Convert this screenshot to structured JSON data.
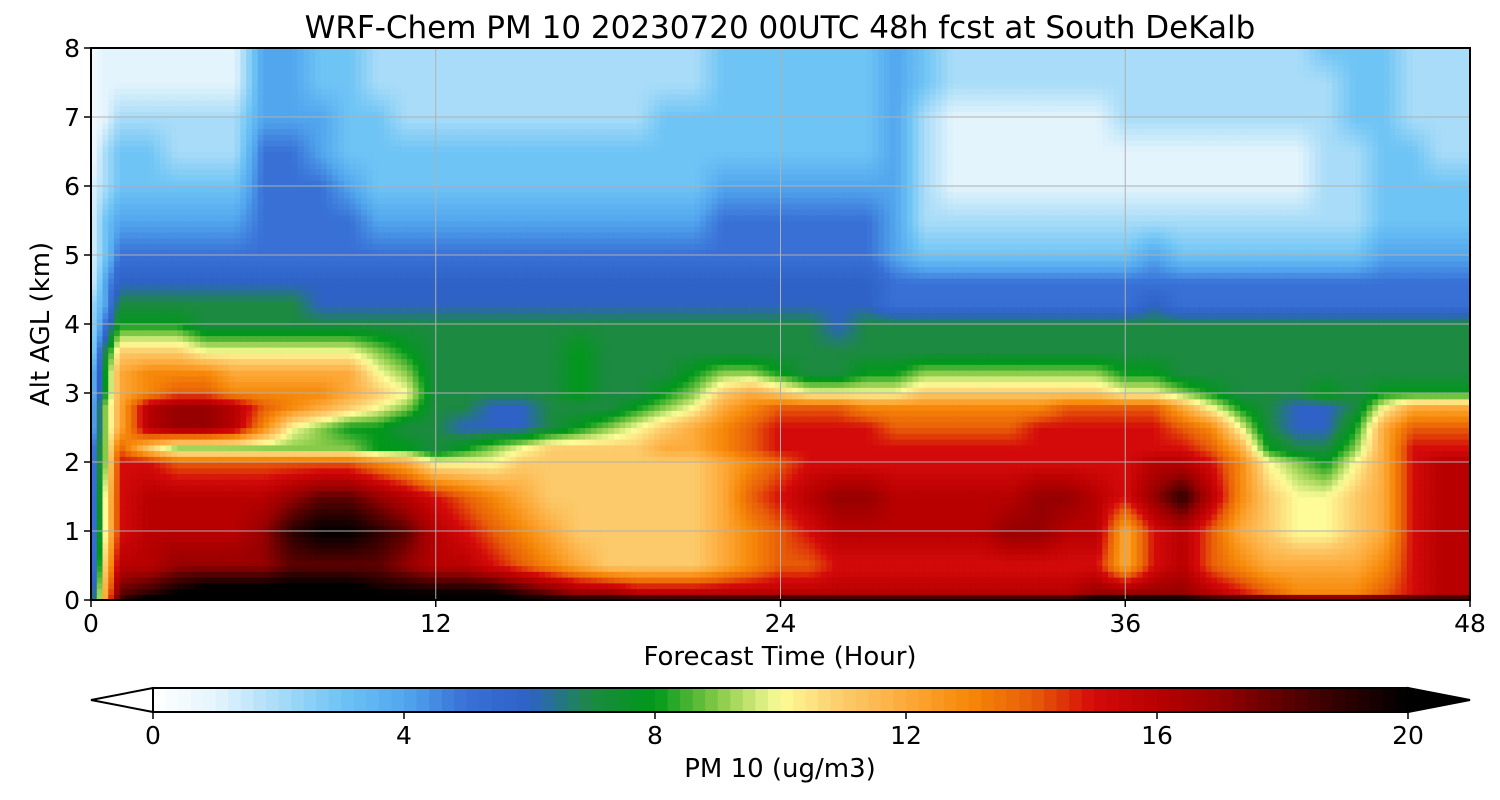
{
  "chart_data": {
    "type": "heatmap",
    "title": "WRF-Chem PM 10  20230720 00UTC 48h fcst at South DeKalb",
    "xlabel": "Forecast Time (Hour)",
    "ylabel": "Alt AGL (km)",
    "xlim": [
      0,
      48
    ],
    "ylim": [
      0,
      8
    ],
    "xticks": [
      "0",
      "12",
      "24",
      "36",
      "48"
    ],
    "yticks": [
      "0",
      "1",
      "2",
      "3",
      "4",
      "5",
      "6",
      "7",
      "8"
    ],
    "grid": true,
    "x": [
      0,
      0.5,
      1,
      2,
      3,
      4,
      5,
      6,
      7,
      8,
      9,
      10,
      11,
      12,
      13,
      14,
      15,
      16,
      17,
      18,
      19,
      20,
      21,
      22,
      23,
      24,
      25,
      26,
      27,
      28,
      29,
      30,
      31,
      32,
      33,
      34,
      35,
      36,
      37,
      38,
      39,
      40,
      41,
      42,
      43,
      44,
      45,
      46,
      47,
      48
    ],
    "y": [
      0,
      0.1,
      0.5,
      1,
      1.5,
      2,
      2.2,
      2.5,
      2.8,
      3,
      3.3,
      3.6,
      4,
      4.3,
      4.6,
      5,
      5.5,
      6,
      6.5,
      7,
      7.5,
      8
    ],
    "z": [
      [
        5,
        12,
        19,
        21,
        21,
        22,
        22,
        22,
        22,
        22,
        22,
        21,
        21,
        21,
        21,
        21,
        20,
        20,
        20,
        20,
        20,
        20,
        20,
        20,
        20,
        20,
        20,
        20,
        20,
        20,
        20,
        20,
        20,
        20,
        20,
        20,
        21,
        21,
        21,
        21,
        20,
        20,
        20,
        20,
        20,
        20,
        20,
        20,
        20,
        20
      ],
      [
        5,
        12,
        18,
        19,
        20,
        21,
        21,
        21,
        21,
        21,
        21,
        20,
        20,
        20,
        20,
        20,
        19,
        18,
        17,
        17,
        16,
        16,
        16,
        16,
        16,
        16,
        16,
        16,
        16,
        16,
        16,
        16,
        16,
        16,
        16,
        16,
        17,
        17,
        17,
        17,
        16,
        15,
        14,
        13,
        13,
        13,
        14,
        15,
        16,
        16
      ],
      [
        4,
        11,
        16,
        16,
        17,
        17,
        17,
        17,
        18,
        18,
        18,
        18,
        17,
        16,
        16,
        15,
        14,
        13,
        12,
        11,
        11,
        11,
        11,
        12,
        13,
        14,
        14,
        15,
        15,
        15,
        15,
        15,
        15,
        15,
        15,
        15,
        15,
        12,
        15,
        16,
        14,
        13,
        12,
        12,
        12,
        12,
        13,
        15,
        16,
        16
      ],
      [
        4,
        10,
        15,
        16,
        16,
        16,
        16,
        17,
        19,
        20,
        20,
        19,
        18,
        16,
        15,
        14,
        13,
        12,
        11,
        11,
        11,
        11,
        11,
        12,
        13,
        14,
        15,
        16,
        16,
        16,
        16,
        16,
        16,
        17,
        17,
        16,
        16,
        12,
        15,
        16,
        14,
        12,
        11,
        10,
        10,
        11,
        12,
        15,
        16,
        16
      ],
      [
        4,
        10,
        15,
        16,
        16,
        16,
        16,
        16,
        17,
        18,
        18,
        17,
        16,
        15,
        14,
        13,
        12,
        11,
        11,
        11,
        11,
        11,
        11,
        12,
        14,
        15,
        16,
        17,
        17,
        16,
        16,
        16,
        16,
        16,
        17,
        17,
        16,
        15,
        17,
        19,
        16,
        13,
        11,
        10,
        10,
        11,
        12,
        15,
        16,
        16
      ],
      [
        4,
        9,
        15,
        15,
        14,
        14,
        14,
        14,
        14,
        14,
        14,
        13,
        12,
        10,
        10,
        10,
        11,
        11,
        11,
        11,
        11,
        11,
        11,
        12,
        13,
        14,
        15,
        15,
        15,
        15,
        15,
        15,
        15,
        15,
        15,
        15,
        15,
        15,
        16,
        16,
        15,
        13,
        10,
        9,
        8,
        10,
        12,
        15,
        16,
        16
      ],
      [
        4,
        9,
        14,
        11,
        9,
        9,
        9,
        9,
        9,
        9,
        9,
        8,
        8,
        7,
        8,
        9,
        10,
        11,
        11,
        11,
        11,
        12,
        12,
        13,
        14,
        15,
        15,
        15,
        15,
        15,
        15,
        15,
        15,
        15,
        15,
        15,
        15,
        15,
        15,
        15,
        14,
        12,
        8,
        7,
        7,
        9,
        12,
        15,
        15,
        15
      ],
      [
        3,
        9,
        12,
        16,
        17,
        17,
        16,
        13,
        10,
        9,
        8,
        8,
        7,
        7,
        6,
        6,
        6,
        7,
        8,
        9,
        10,
        11,
        12,
        13,
        14,
        15,
        15,
        15,
        15,
        14,
        14,
        14,
        14,
        14,
        15,
        15,
        15,
        15,
        15,
        14,
        13,
        10,
        7,
        6,
        6,
        8,
        12,
        14,
        14,
        14
      ],
      [
        3,
        9,
        12,
        16,
        17,
        17,
        16,
        14,
        13,
        12,
        11,
        10,
        9,
        7,
        7,
        6,
        6,
        7,
        7,
        7,
        8,
        9,
        10,
        12,
        13,
        14,
        14,
        14,
        13,
        13,
        13,
        13,
        13,
        13,
        13,
        14,
        14,
        14,
        14,
        12,
        10,
        8,
        7,
        6,
        6,
        7,
        10,
        12,
        12,
        12
      ],
      [
        3,
        8,
        12,
        13,
        14,
        14,
        13,
        13,
        13,
        13,
        12,
        11,
        10,
        7,
        7,
        7,
        7,
        7,
        8,
        7,
        7,
        8,
        9,
        11,
        12,
        11,
        10,
        10,
        10,
        10,
        11,
        11,
        11,
        11,
        11,
        11,
        11,
        10,
        10,
        9,
        8,
        7,
        7,
        7,
        8,
        7,
        8,
        8,
        8,
        8
      ],
      [
        3,
        8,
        12,
        13,
        13,
        13,
        12,
        12,
        12,
        12,
        12,
        10,
        9,
        7,
        7,
        7,
        7,
        7,
        8,
        7,
        7,
        7,
        8,
        9,
        9,
        8,
        7,
        7,
        8,
        8,
        9,
        9,
        9,
        9,
        9,
        9,
        9,
        8,
        8,
        7,
        7,
        7,
        7,
        7,
        7,
        7,
        7,
        7,
        7,
        7
      ],
      [
        2,
        7,
        11,
        11,
        11,
        10,
        10,
        10,
        10,
        10,
        10,
        9,
        8,
        7,
        7,
        7,
        7,
        7,
        8,
        7,
        7,
        7,
        7,
        7,
        7,
        7,
        7,
        7,
        7,
        7,
        7,
        7,
        7,
        7,
        7,
        7,
        7,
        7,
        7,
        7,
        7,
        7,
        7,
        7,
        7,
        7,
        7,
        7,
        7,
        7
      ],
      [
        2,
        5,
        8,
        8,
        8,
        7,
        7,
        7,
        7,
        7,
        7,
        7,
        7,
        7,
        7,
        7,
        7,
        7,
        7,
        7,
        7,
        7,
        7,
        7,
        7,
        7,
        7,
        6,
        7,
        7,
        7,
        7,
        7,
        7,
        7,
        7,
        7,
        7,
        7,
        7,
        7,
        7,
        7,
        7,
        7,
        7,
        7,
        7,
        7,
        7
      ],
      [
        2,
        4,
        7,
        7,
        7,
        7,
        7,
        7,
        7,
        6,
        6,
        6,
        6,
        6,
        6,
        6,
        6,
        6,
        6,
        6,
        6,
        6,
        6,
        6,
        6,
        6,
        6,
        6,
        6,
        5,
        5,
        5,
        5,
        5,
        5,
        5,
        5,
        5,
        6,
        5,
        5,
        5,
        5,
        5,
        5,
        5,
        5,
        5,
        5,
        5
      ],
      [
        1,
        4,
        6,
        6,
        6,
        6,
        6,
        6,
        6,
        6,
        6,
        6,
        6,
        6,
        6,
        6,
        6,
        6,
        6,
        6,
        6,
        6,
        6,
        6,
        6,
        6,
        6,
        6,
        6,
        5,
        5,
        5,
        5,
        5,
        5,
        5,
        5,
        5,
        5,
        5,
        5,
        5,
        5,
        5,
        5,
        5,
        5,
        5,
        5,
        5
      ],
      [
        1,
        3,
        5,
        5,
        5,
        5,
        5,
        5,
        5,
        5,
        5,
        5,
        5,
        5,
        5,
        5,
        5,
        5,
        5,
        5,
        5,
        5,
        5,
        5,
        5,
        5,
        5,
        5,
        5,
        4,
        3,
        3,
        3,
        3,
        3,
        3,
        3,
        3,
        4,
        3,
        3,
        3,
        3,
        3,
        3,
        3,
        4,
        4,
        4,
        4
      ],
      [
        1,
        3,
        4,
        4,
        4,
        4,
        4,
        5,
        5,
        5,
        5,
        4,
        4,
        4,
        4,
        4,
        4,
        4,
        4,
        4,
        4,
        4,
        4,
        5,
        5,
        5,
        5,
        5,
        5,
        4,
        2,
        2,
        2,
        2,
        2,
        2,
        2,
        2,
        2,
        2,
        2,
        2,
        2,
        2,
        2,
        2,
        3,
        3,
        3,
        3
      ],
      [
        1,
        2,
        3,
        3,
        3,
        3,
        3,
        5,
        5,
        5,
        4,
        3,
        3,
        3,
        3,
        3,
        3,
        3,
        3,
        3,
        3,
        3,
        3,
        4,
        4,
        4,
        4,
        4,
        4,
        4,
        2,
        1,
        1,
        1,
        1,
        1,
        1,
        1,
        1,
        1,
        1,
        1,
        1,
        1,
        2,
        2,
        3,
        3,
        3,
        3
      ],
      [
        0.5,
        2,
        3,
        3,
        2,
        2,
        2,
        5,
        5,
        4,
        3,
        3,
        3,
        3,
        3,
        3,
        3,
        3,
        3,
        3,
        3,
        3,
        3,
        3,
        3,
        3,
        3,
        3,
        3,
        4,
        2,
        1,
        1,
        1,
        1,
        1,
        1,
        1,
        1,
        1,
        1,
        1,
        1,
        1,
        2,
        2,
        3,
        3,
        2,
        2
      ],
      [
        0.5,
        1,
        2,
        2,
        2,
        2,
        2,
        4,
        4,
        4,
        3,
        3,
        2,
        2,
        2,
        2,
        2,
        2,
        2,
        2,
        2,
        3,
        3,
        3,
        3,
        3,
        3,
        3,
        3,
        4,
        2,
        1,
        1,
        1,
        1,
        1,
        1,
        2,
        2,
        2,
        2,
        2,
        2,
        2,
        2,
        3,
        3,
        2,
        2,
        2
      ],
      [
        0.5,
        1,
        1,
        1,
        1,
        1,
        1,
        4,
        4,
        3,
        3,
        2,
        2,
        2,
        2,
        2,
        2,
        2,
        2,
        2,
        2,
        2,
        2,
        3,
        3,
        3,
        3,
        3,
        3,
        4,
        3,
        2,
        2,
        2,
        2,
        2,
        2,
        2,
        2,
        2,
        2,
        2,
        2,
        2,
        2,
        3,
        3,
        2,
        2,
        2
      ],
      [
        0.5,
        1,
        1,
        1,
        1,
        1,
        1,
        4,
        4,
        3,
        3,
        2,
        2,
        2,
        2,
        2,
        2,
        2,
        2,
        2,
        2,
        2,
        2,
        3,
        3,
        3,
        3,
        3,
        3,
        4,
        3,
        2,
        2,
        2,
        2,
        2,
        2,
        2,
        2,
        2,
        2,
        2,
        2,
        2,
        3,
        3,
        3,
        2,
        2,
        2
      ]
    ],
    "colorbar": {
      "label": "PM 10  (ug/m3)",
      "min": 0,
      "max": 20,
      "ticks": [
        "0",
        "4",
        "8",
        "12",
        "16",
        "20"
      ],
      "extend": "both",
      "orientation": "horizontal",
      "colors": [
        [
          0,
          "#ffffff"
        ],
        [
          1,
          "#e4f4fc"
        ],
        [
          2,
          "#a8dcf8"
        ],
        [
          3,
          "#6ec4f5"
        ],
        [
          4,
          "#52a6ee"
        ],
        [
          5,
          "#3870d6"
        ],
        [
          6,
          "#2e62c6"
        ],
        [
          7,
          "#1c8a40"
        ],
        [
          8,
          "#00981a"
        ],
        [
          9,
          "#86ca48"
        ],
        [
          10,
          "#fdfc98"
        ],
        [
          11,
          "#fcca6a"
        ],
        [
          12,
          "#fdaa3a"
        ],
        [
          13,
          "#f68808"
        ],
        [
          14,
          "#e85e08"
        ],
        [
          15,
          "#d40a0a"
        ],
        [
          16,
          "#b80000"
        ],
        [
          17,
          "#960000"
        ],
        [
          18,
          "#5e0000"
        ],
        [
          19,
          "#2c0000"
        ],
        [
          20,
          "#000000"
        ]
      ]
    }
  }
}
